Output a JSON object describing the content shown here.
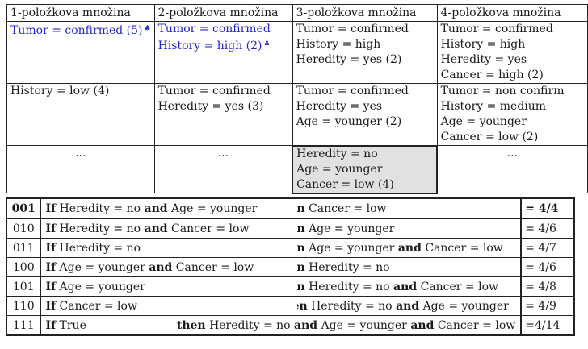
{
  "itemsets": {
    "headers": [
      "1-položkova množina",
      "2-položkova množina",
      "3-položkova množina",
      "4-položkova množina"
    ],
    "row1": {
      "c1": [
        "Tumor = confirmed (5)"
      ],
      "c1_mark": "♣",
      "c2": [
        "Tumor = confirmed",
        "History = high (2)"
      ],
      "c2_mark": "♣",
      "c3": [
        "Tumor = confirmed",
        "History = high",
        "Heredity = yes (2)"
      ],
      "c4": [
        "Tumor = confirmed",
        "History = high",
        "Heredity = yes",
        "Cancer = high (2)"
      ]
    },
    "row2": {
      "c1": [
        "History = low (4)"
      ],
      "c2": [
        "Tumor = confirmed",
        "Heredity = yes (3)"
      ],
      "c3": [
        "Tumor = confirmed",
        "Heredity = yes",
        "Age = younger (2)"
      ],
      "c4": [
        "Tumor = non confirm",
        "History = medium",
        "Age = younger",
        "Cancer = low (2)"
      ]
    },
    "row3": {
      "c1": "...",
      "c2": "...",
      "c3": [
        "Heredity = no",
        "Age = younger",
        "Cancer = low (4)"
      ],
      "c4": "..."
    }
  },
  "rules": [
    {
      "code": "001",
      "if_kw": "If",
      "if_text": "Heredity = no",
      "and1": "and",
      "if_text2": "Age = younger",
      "then_kw": "then",
      "then_text": "Cancer = low",
      "confidence": "= 4/4"
    },
    {
      "code": "010",
      "if_kw": "If",
      "if_text": "Heredity = no",
      "and1": "and",
      "if_text2": "Cancer = low",
      "then_kw": "then",
      "then_text": "Age = younger",
      "confidence": "= 4/6"
    },
    {
      "code": "011",
      "if_kw": "If",
      "if_text": "Heredity = no",
      "and1": "",
      "if_text2": "",
      "then_kw": "then",
      "then_text": "Age = younger",
      "then_and": "and",
      "then_text2": "Cancer = low",
      "confidence": "= 4/7"
    },
    {
      "code": "100",
      "if_kw": "If",
      "if_text": "Age = younger",
      "and1": "and",
      "if_text2": "Cancer = low",
      "then_kw": "then",
      "then_text": "Heredity = no",
      "confidence": "= 4/6"
    },
    {
      "code": "101",
      "if_kw": "If",
      "if_text": "Age = younger",
      "and1": "",
      "if_text2": "",
      "then_kw": "then",
      "then_text": "Heredity = no",
      "then_and": "and",
      "then_text2": "Cancer = low",
      "confidence": "= 4/8"
    },
    {
      "code": "110",
      "if_kw": "If",
      "if_text": "Cancer = low",
      "and1": "",
      "if_text2": "",
      "then_kw": "then",
      "then_text": "Heredity = no",
      "then_and": "and",
      "then_text2": "Age = younger",
      "confidence": "= 4/9"
    },
    {
      "code": "111",
      "if_kw": "If",
      "if_text": "True",
      "and1": "",
      "if_text2": "",
      "then_kw": "then",
      "then_text": "Heredity = no",
      "then_and": "and",
      "then_text2": "Age = younger",
      "then_and2": "and",
      "then_text3": "Cancer = low",
      "confidence": "=4/14"
    }
  ]
}
